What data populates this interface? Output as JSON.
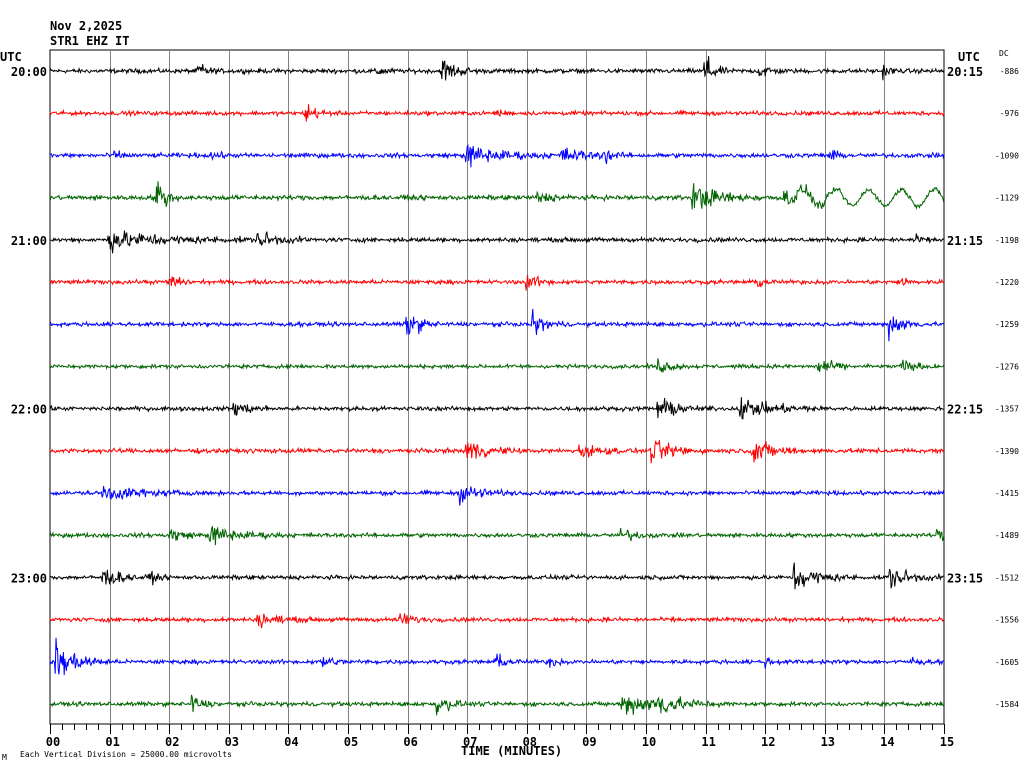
{
  "header": {
    "date": "Nov 2,2025",
    "station": "STR1 EHZ IT",
    "utc_left": "UTC",
    "utc_right": "UTC",
    "dc_label": "DC"
  },
  "footer": {
    "note": "Each Vertical Division = 25000.00 microvolts",
    "corner_mark": "M"
  },
  "colors": {
    "cycle": [
      "#000000",
      "#ff0000",
      "#0000ff",
      "#006400"
    ],
    "grid": "#808080"
  },
  "chart_data": {
    "type": "line",
    "title": "Nov 2,2025 STR1 EHZ IT",
    "xlabel": "TIME (MINUTES)",
    "xlim": [
      0,
      15
    ],
    "x_ticks": [
      "00",
      "01",
      "02",
      "03",
      "04",
      "05",
      "06",
      "07",
      "08",
      "09",
      "10",
      "11",
      "12",
      "13",
      "14",
      "15"
    ],
    "left_hour_labels": [
      {
        "row": 0,
        "label": "20:00"
      },
      {
        "row": 4,
        "label": "21:00"
      },
      {
        "row": 8,
        "label": "22:00"
      },
      {
        "row": 12,
        "label": "23:00"
      }
    ],
    "right_time_labels": [
      {
        "row": 0,
        "label": "20:15"
      },
      {
        "row": 4,
        "label": "21:15"
      },
      {
        "row": 8,
        "label": "22:15"
      },
      {
        "row": 12,
        "label": "23:15"
      }
    ],
    "dc_offsets": [
      "-886",
      "-976",
      "-1090",
      "-1129",
      "-1198",
      "-1220",
      "-1259",
      "-1276",
      "-1357",
      "-1390",
      "-1415",
      "-1489",
      "-1512",
      "-1556",
      "-1605",
      "-1584"
    ],
    "traces": [
      {
        "row": 0,
        "color": "#000000",
        "noise": 1.6,
        "events": [
          [
            2.5,
            6,
            0.12
          ],
          [
            5.5,
            4,
            0.1
          ],
          [
            6.6,
            9,
            0.2
          ],
          [
            11.0,
            14,
            0.12
          ],
          [
            11.9,
            6,
            0.15
          ],
          [
            14.0,
            4,
            0.1
          ]
        ]
      },
      {
        "row": 1,
        "color": "#ff0000",
        "noise": 1.5,
        "events": [
          [
            4.3,
            8,
            0.15
          ],
          [
            7.5,
            3,
            0.1
          ]
        ]
      },
      {
        "row": 2,
        "color": "#0000ff",
        "noise": 1.6,
        "events": [
          [
            1.1,
            3,
            0.1
          ],
          [
            2.7,
            4,
            0.1
          ],
          [
            7.0,
            8,
            0.5
          ],
          [
            8.6,
            5,
            0.4
          ],
          [
            9.3,
            6,
            0.1
          ],
          [
            13.1,
            4,
            0.1
          ]
        ]
      },
      {
        "row": 3,
        "color": "#006400",
        "noise": 1.7,
        "events": [
          [
            1.8,
            16,
            0.12
          ],
          [
            8.2,
            4,
            0.2
          ],
          [
            10.8,
            10,
            0.4
          ],
          [
            12.3,
            6,
            0.4
          ]
        ],
        "waves": [
          [
            12.5,
            15.0,
            8,
            0.55
          ]
        ]
      },
      {
        "row": 4,
        "color": "#000000",
        "noise": 1.6,
        "events": [
          [
            1.0,
            7,
            0.8
          ],
          [
            3.5,
            6,
            0.3
          ],
          [
            14.5,
            3,
            0.1
          ]
        ]
      },
      {
        "row": 5,
        "color": "#ff0000",
        "noise": 1.5,
        "events": [
          [
            2.0,
            6,
            0.15
          ],
          [
            8.0,
            5,
            0.2
          ],
          [
            11.9,
            4,
            0.1
          ],
          [
            14.3,
            4,
            0.1
          ]
        ]
      },
      {
        "row": 6,
        "color": "#0000ff",
        "noise": 1.5,
        "events": [
          [
            6.0,
            10,
            0.2
          ],
          [
            8.1,
            8,
            0.2
          ],
          [
            14.1,
            10,
            0.2
          ]
        ]
      },
      {
        "row": 7,
        "color": "#006400",
        "noise": 1.4,
        "events": [
          [
            10.2,
            5,
            0.2
          ],
          [
            12.9,
            6,
            0.2
          ],
          [
            14.3,
            5,
            0.2
          ]
        ]
      },
      {
        "row": 8,
        "color": "#000000",
        "noise": 1.5,
        "events": [
          [
            3.1,
            6,
            0.2
          ],
          [
            10.2,
            9,
            0.25
          ],
          [
            11.6,
            7,
            0.5
          ]
        ]
      },
      {
        "row": 9,
        "color": "#ff0000",
        "noise": 1.6,
        "events": [
          [
            7.0,
            8,
            0.3
          ],
          [
            8.9,
            5,
            0.3
          ],
          [
            10.1,
            9,
            0.3
          ],
          [
            11.8,
            10,
            0.3
          ]
        ]
      },
      {
        "row": 10,
        "color": "#0000ff",
        "noise": 1.5,
        "events": [
          [
            0.9,
            6,
            0.5
          ],
          [
            6.9,
            7,
            0.3
          ]
        ]
      },
      {
        "row": 11,
        "color": "#006400",
        "noise": 1.5,
        "events": [
          [
            2.0,
            6,
            0.2
          ],
          [
            2.7,
            7,
            0.4
          ],
          [
            9.6,
            5,
            0.2
          ],
          [
            14.9,
            4,
            0.1
          ]
        ]
      },
      {
        "row": 12,
        "color": "#000000",
        "noise": 1.5,
        "events": [
          [
            0.9,
            7,
            0.25
          ],
          [
            1.7,
            4,
            0.1
          ],
          [
            12.5,
            10,
            0.35
          ],
          [
            14.1,
            8,
            0.3
          ]
        ]
      },
      {
        "row": 13,
        "color": "#ff0000",
        "noise": 1.5,
        "events": [
          [
            3.5,
            5,
            0.3
          ],
          [
            5.9,
            5,
            0.2
          ]
        ]
      },
      {
        "row": 14,
        "color": "#0000ff",
        "noise": 1.5,
        "events": [
          [
            0.1,
            16,
            0.3
          ],
          [
            4.6,
            5,
            0.15
          ],
          [
            7.5,
            5,
            0.15
          ],
          [
            8.4,
            4,
            0.1
          ],
          [
            12.0,
            4,
            0.1
          ],
          [
            14.5,
            3,
            0.1
          ]
        ]
      },
      {
        "row": 15,
        "color": "#006400",
        "noise": 1.5,
        "events": [
          [
            2.4,
            6,
            0.15
          ],
          [
            6.5,
            7,
            0.2
          ],
          [
            9.6,
            8,
            0.6
          ],
          [
            10.2,
            7,
            0.3
          ]
        ]
      }
    ]
  }
}
